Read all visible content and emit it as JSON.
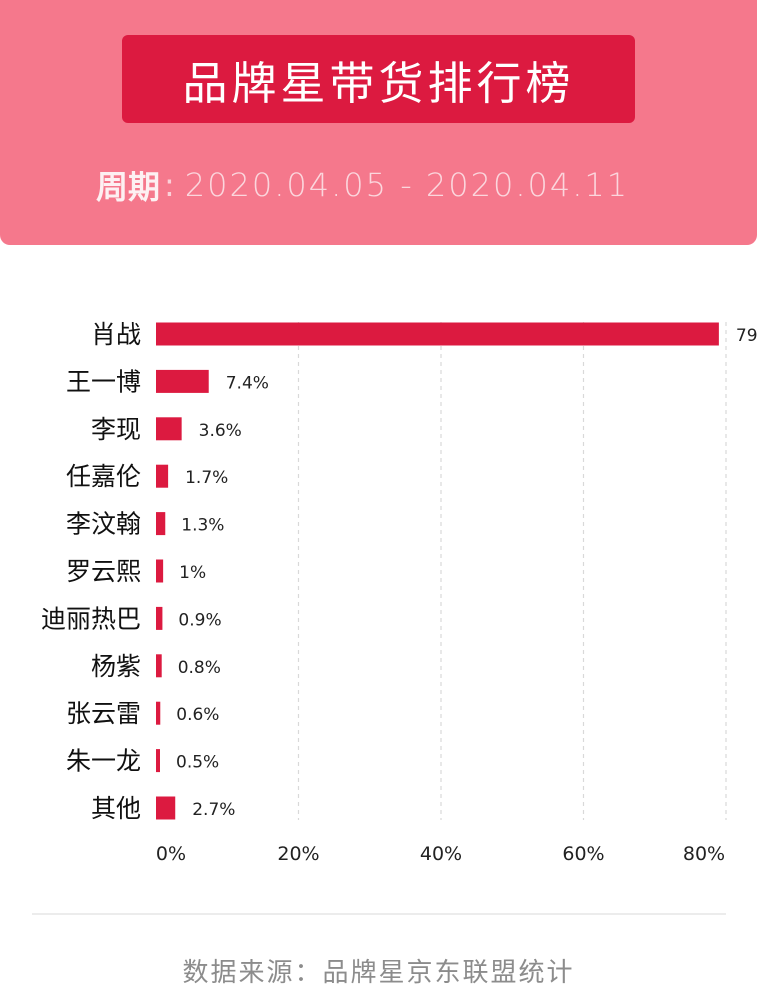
{
  "header": {
    "title": "品牌星带货排行榜",
    "period_label": "周期",
    "period_separator": ":",
    "period_value": "2020.04.05 - 2020.04.11"
  },
  "chart_data": {
    "type": "bar",
    "orientation": "horizontal",
    "categories": [
      "肖战",
      "王一博",
      "李现",
      "任嘉伦",
      "李汶翰",
      "罗云熙",
      "迪丽热巴",
      "杨紫",
      "张云雷",
      "朱一龙",
      "其他"
    ],
    "values": [
      79,
      7.4,
      3.6,
      1.7,
      1.3,
      1,
      0.9,
      0.8,
      0.6,
      0.5,
      2.7
    ],
    "value_labels": [
      "79",
      "7.4%",
      "3.6%",
      "1.7%",
      "1.3%",
      "1%",
      "0.9%",
      "0.8%",
      "0.6%",
      "0.5%",
      "2.7%"
    ],
    "x_ticks": [
      0,
      20,
      40,
      60,
      80
    ],
    "x_tick_labels": [
      "0%",
      "20%",
      "40%",
      "60%",
      "80%"
    ],
    "xlim": [
      0,
      80
    ],
    "grid": "vertical dashed",
    "bar_color": "#dc1a40"
  },
  "footer": {
    "source": "数据来源：品牌星京东联盟统计"
  }
}
